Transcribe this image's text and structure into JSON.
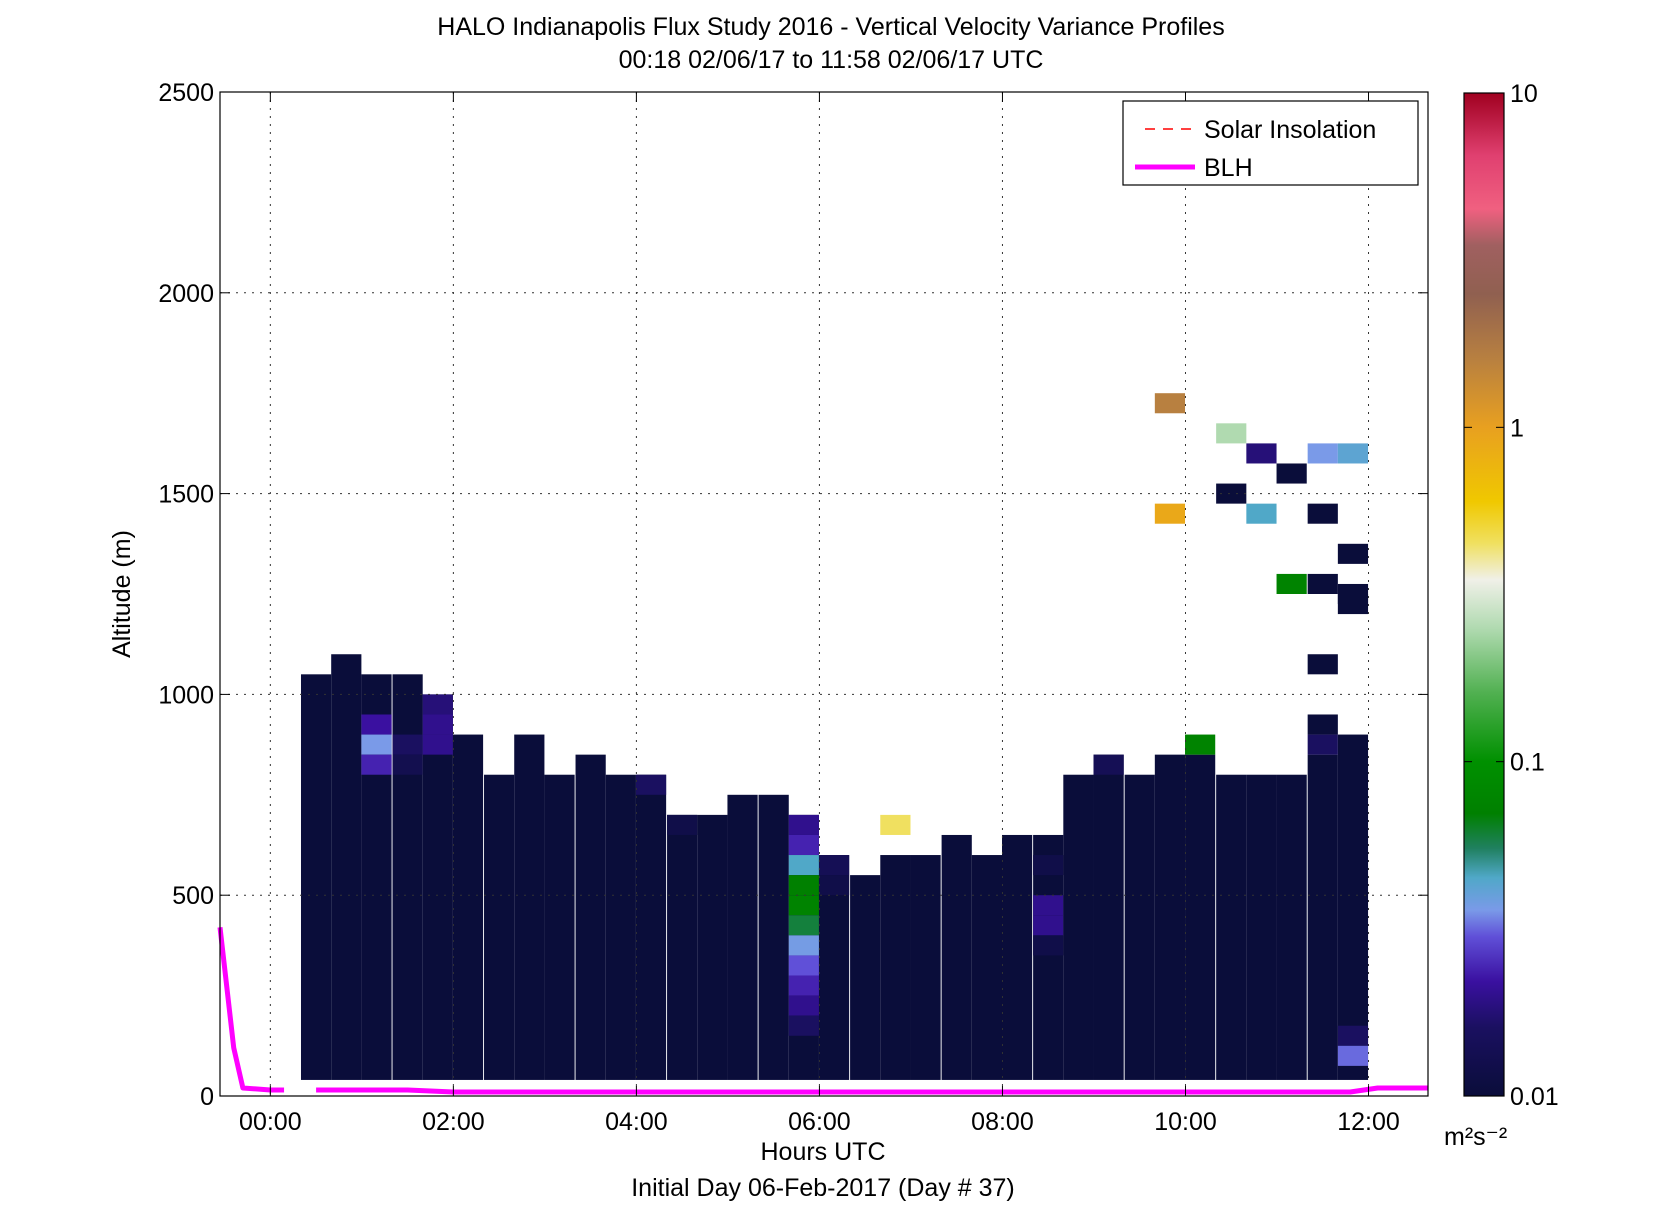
{
  "chart_data": {
    "type": "heatmap",
    "title": "HALO Indianapolis Flux Study 2016 - Vertical Velocity Variance Profiles",
    "subtitle": "00:18 02/06/17 to 11:58 02/06/17  UTC",
    "xlabel": "Hours UTC",
    "xlabel2": "Initial Day 06-Feb-2017 (Day # 37)",
    "ylabel": "Altitude (m)",
    "x_unit": "hours",
    "xlim": [
      -0.55,
      12.65
    ],
    "ylim": [
      0,
      2500
    ],
    "x_ticks": [
      0,
      2,
      4,
      6,
      8,
      10,
      12
    ],
    "x_tick_labels": [
      "00:00",
      "02:00",
      "04:00",
      "06:00",
      "08:00",
      "10:00",
      "12:00"
    ],
    "y_ticks": [
      0,
      500,
      1000,
      1500,
      2000,
      2500
    ],
    "y_tick_labels": [
      "0",
      "500",
      "1000",
      "1500",
      "2000",
      "2500"
    ],
    "grid": true,
    "legend_position": "top-right",
    "legend": [
      {
        "label": "Solar Insolation",
        "color": "#ff0000",
        "style": "dashed"
      },
      {
        "label": "BLH",
        "color": "#ff00ff",
        "style": "solid"
      }
    ],
    "colorbar": {
      "scale": "log",
      "min": 0.01,
      "max": 10,
      "ticks": [
        0.01,
        0.1,
        1,
        10
      ],
      "tick_labels": [
        "0.01",
        "0.1",
        "1",
        "10"
      ],
      "unit": "m²s⁻²",
      "colormap": [
        {
          "v": 0.01,
          "c": "#0a0d3a"
        },
        {
          "v": 0.016,
          "c": "#1a1060"
        },
        {
          "v": 0.022,
          "c": "#3a10a0"
        },
        {
          "v": 0.03,
          "c": "#6050d8"
        },
        {
          "v": 0.036,
          "c": "#7a9ae8"
        },
        {
          "v": 0.045,
          "c": "#50a8c8"
        },
        {
          "v": 0.055,
          "c": "#208060"
        },
        {
          "v": 0.07,
          "c": "#008000"
        },
        {
          "v": 0.1,
          "c": "#009000"
        },
        {
          "v": 0.16,
          "c": "#50b050"
        },
        {
          "v": 0.25,
          "c": "#b0dab0"
        },
        {
          "v": 0.35,
          "c": "#f0f0e8"
        },
        {
          "v": 0.45,
          "c": "#f0e060"
        },
        {
          "v": 0.6,
          "c": "#f0c800"
        },
        {
          "v": 1.0,
          "c": "#e8a020"
        },
        {
          "v": 1.6,
          "c": "#b88040"
        },
        {
          "v": 2.5,
          "c": "#906050"
        },
        {
          "v": 3.5,
          "c": "#a06060"
        },
        {
          "v": 4.5,
          "c": "#f06080"
        },
        {
          "v": 6.5,
          "c": "#e04070"
        },
        {
          "v": 10,
          "c": "#a00020"
        }
      ]
    },
    "blh": {
      "name": "BLH",
      "segments": [
        {
          "x": [
            -0.55,
            -0.4,
            -0.3,
            0.0,
            0.15
          ],
          "y": [
            420,
            120,
            20,
            15,
            15
          ]
        },
        {
          "x": [
            0.5,
            1.5,
            2.0,
            11.8,
            12.1,
            12.65
          ],
          "y": [
            15,
            15,
            10,
            10,
            20,
            20
          ]
        }
      ]
    },
    "columns": [
      {
        "t": 0.5,
        "top": 1050,
        "cells": []
      },
      {
        "t": 0.83,
        "top": 1100,
        "cells": []
      },
      {
        "t": 1.16,
        "top": 1050,
        "cells": [
          {
            "z": 925,
            "v": 0.022
          },
          {
            "z": 875,
            "v": 0.036
          },
          {
            "z": 825,
            "v": 0.024
          }
        ]
      },
      {
        "t": 1.5,
        "top": 1050,
        "cells": [
          {
            "z": 875,
            "v": 0.016
          },
          {
            "z": 825,
            "v": 0.013
          }
        ]
      },
      {
        "t": 1.83,
        "top": 1000,
        "cells": [
          {
            "z": 975,
            "v": 0.018
          },
          {
            "z": 925,
            "v": 0.02
          },
          {
            "z": 875,
            "v": 0.02
          }
        ]
      },
      {
        "t": 2.16,
        "top": 900,
        "cells": []
      },
      {
        "t": 2.5,
        "top": 800,
        "cells": []
      },
      {
        "t": 2.83,
        "top": 900,
        "cells": []
      },
      {
        "t": 3.16,
        "top": 800,
        "cells": []
      },
      {
        "t": 3.5,
        "top": 850,
        "cells": []
      },
      {
        "t": 3.83,
        "top": 800,
        "cells": []
      },
      {
        "t": 4.16,
        "top": 800,
        "cells": [
          {
            "z": 775,
            "v": 0.016
          }
        ]
      },
      {
        "t": 4.5,
        "top": 700,
        "cells": [
          {
            "z": 675,
            "v": 0.012
          }
        ]
      },
      {
        "t": 4.83,
        "top": 700,
        "cells": []
      },
      {
        "t": 5.16,
        "top": 750,
        "cells": []
      },
      {
        "t": 5.5,
        "top": 750,
        "cells": []
      },
      {
        "t": 5.83,
        "top": 700,
        "cells": [
          {
            "z": 675,
            "v": 0.02
          },
          {
            "z": 625,
            "v": 0.024
          },
          {
            "z": 575,
            "v": 0.045
          },
          {
            "z": 525,
            "v": 0.07
          },
          {
            "z": 475,
            "v": 0.075
          },
          {
            "z": 425,
            "v": 0.06
          },
          {
            "z": 375,
            "v": 0.037
          },
          {
            "z": 325,
            "v": 0.03
          },
          {
            "z": 275,
            "v": 0.024
          },
          {
            "z": 225,
            "v": 0.02
          },
          {
            "z": 175,
            "v": 0.016
          }
        ]
      },
      {
        "t": 6.16,
        "top": 600,
        "cells": [
          {
            "z": 575,
            "v": 0.014
          },
          {
            "z": 525,
            "v": 0.012
          }
        ]
      },
      {
        "t": 6.5,
        "top": 550,
        "cells": []
      },
      {
        "t": 6.83,
        "top": 600,
        "cells": [
          {
            "z": 675,
            "v": 0.45
          }
        ]
      },
      {
        "t": 7.16,
        "top": 600,
        "cells": []
      },
      {
        "t": 7.5,
        "top": 650,
        "cells": []
      },
      {
        "t": 7.83,
        "top": 600,
        "cells": []
      },
      {
        "t": 8.16,
        "top": 650,
        "cells": []
      },
      {
        "t": 8.5,
        "top": 650,
        "cells": [
          {
            "z": 575,
            "v": 0.012
          },
          {
            "z": 475,
            "v": 0.02
          },
          {
            "z": 425,
            "v": 0.02
          },
          {
            "z": 375,
            "v": 0.012
          }
        ]
      },
      {
        "t": 8.83,
        "top": 800,
        "cells": []
      },
      {
        "t": 9.16,
        "top": 850,
        "cells": [
          {
            "z": 825,
            "v": 0.014
          }
        ]
      },
      {
        "t": 9.5,
        "top": 800,
        "cells": []
      },
      {
        "t": 9.83,
        "top": 850,
        "cells": [
          {
            "z": 1725,
            "v": 1.6
          },
          {
            "z": 1450,
            "v": 0.9
          }
        ]
      },
      {
        "t": 10.16,
        "top": 850,
        "cells": [
          {
            "z": 875,
            "v": 0.075
          }
        ]
      },
      {
        "t": 10.5,
        "top": 800,
        "cells": [
          {
            "z": 1650,
            "v": 0.25
          },
          {
            "z": 1500,
            "v": 0.01
          }
        ]
      },
      {
        "t": 10.83,
        "top": 800,
        "cells": [
          {
            "z": 1600,
            "v": 0.018
          },
          {
            "z": 1450,
            "v": 0.045
          }
        ]
      },
      {
        "t": 11.16,
        "top": 800,
        "cells": [
          {
            "z": 1550,
            "v": 0.01
          },
          {
            "z": 1275,
            "v": 0.075
          }
        ]
      },
      {
        "t": 11.5,
        "top": 850,
        "cells": [
          {
            "z": 1600,
            "v": 0.036
          },
          {
            "z": 1450,
            "v": 0.01
          },
          {
            "z": 1275,
            "v": 0.01
          },
          {
            "z": 1075,
            "v": 0.01
          },
          {
            "z": 925,
            "v": 0.01
          },
          {
            "z": 875,
            "v": 0.016
          }
        ]
      },
      {
        "t": 11.83,
        "top": 900,
        "cells": [
          {
            "z": 1600,
            "v": 0.042
          },
          {
            "z": 1350,
            "v": 0.01
          },
          {
            "z": 1250,
            "v": 0.01
          },
          {
            "z": 1225,
            "v": 0.01
          },
          {
            "z": 150,
            "v": 0.016
          },
          {
            "z": 100,
            "v": 0.032
          }
        ]
      }
    ]
  }
}
